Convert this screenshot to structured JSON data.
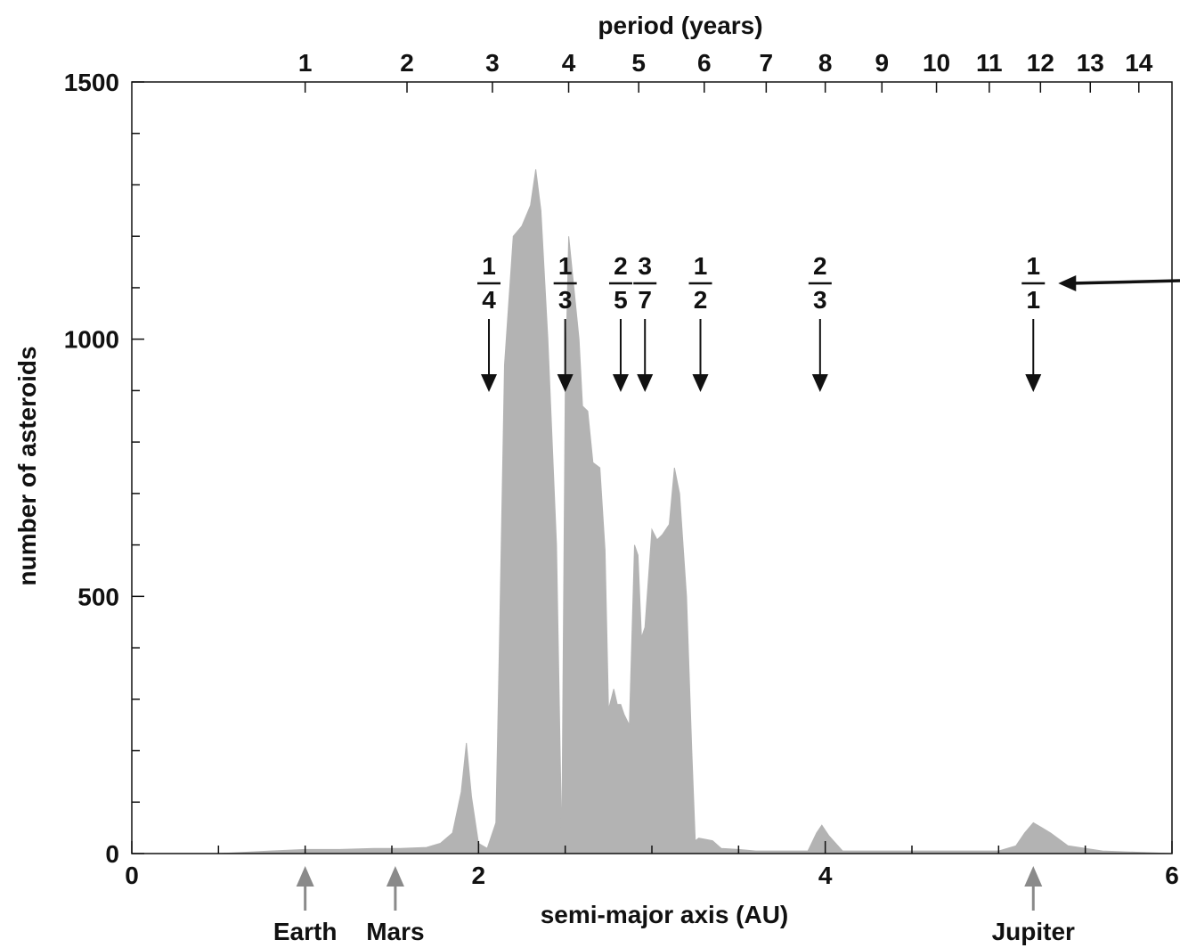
{
  "chart_data": {
    "type": "area",
    "xlabel": "semi-major axis (AU)",
    "ylabel": "number of asteroids",
    "x2label": "period (years)",
    "xlim": [
      0,
      6
    ],
    "ylim": [
      0,
      1500
    ],
    "x_ticks": [
      0,
      2,
      4,
      6
    ],
    "y_ticks": [
      0,
      500,
      1000,
      1500
    ],
    "period_ticks": [
      1,
      2,
      3,
      4,
      5,
      6,
      7,
      8,
      9,
      10,
      11,
      12,
      13,
      14
    ],
    "fill_color": "#b3b3b3",
    "distribution": {
      "x": [
        0.5,
        0.8,
        1.0,
        1.2,
        1.4,
        1.55,
        1.7,
        1.78,
        1.85,
        1.9,
        1.93,
        1.96,
        2.0,
        2.05,
        2.1,
        2.12,
        2.15,
        2.2,
        2.25,
        2.3,
        2.33,
        2.36,
        2.4,
        2.45,
        2.48,
        2.5,
        2.52,
        2.55,
        2.58,
        2.6,
        2.63,
        2.66,
        2.7,
        2.73,
        2.75,
        2.78,
        2.8,
        2.82,
        2.84,
        2.87,
        2.9,
        2.92,
        2.94,
        2.96,
        3.0,
        3.03,
        3.06,
        3.1,
        3.13,
        3.16,
        3.2,
        3.23,
        3.25,
        3.27,
        3.3,
        3.35,
        3.4,
        3.5,
        3.6,
        3.7,
        3.9,
        3.95,
        3.98,
        4.02,
        4.1,
        4.5,
        5.0,
        5.1,
        5.15,
        5.2,
        5.25,
        5.3,
        5.4,
        5.6,
        6.0
      ],
      "y": [
        0,
        5,
        8,
        8,
        10,
        10,
        12,
        20,
        40,
        120,
        215,
        110,
        20,
        10,
        60,
        400,
        950,
        1200,
        1220,
        1260,
        1330,
        1250,
        1000,
        600,
        20,
        900,
        1200,
        1100,
        1000,
        870,
        860,
        760,
        750,
        590,
        280,
        320,
        290,
        290,
        270,
        250,
        600,
        580,
        420,
        440,
        630,
        610,
        620,
        640,
        750,
        700,
        500,
        200,
        25,
        30,
        28,
        25,
        10,
        8,
        5,
        5,
        5,
        40,
        55,
        35,
        5,
        5,
        5,
        15,
        40,
        60,
        50,
        40,
        15,
        5,
        0
      ]
    },
    "resonances": [
      {
        "num": "1",
        "den": "4",
        "x": 2.06
      },
      {
        "num": "1",
        "den": "3",
        "x": 2.5
      },
      {
        "num": "2",
        "den": "5",
        "x": 2.82
      },
      {
        "num": "3",
        "den": "7",
        "x": 2.96
      },
      {
        "num": "1",
        "den": "2",
        "x": 3.28
      },
      {
        "num": "2",
        "den": "3",
        "x": 3.97
      },
      {
        "num": "1",
        "den": "1",
        "x": 5.2
      }
    ],
    "planets": [
      {
        "name": "Earth",
        "x": 1.0
      },
      {
        "name": "Mars",
        "x": 1.52
      },
      {
        "name": "Jupiter",
        "x": 5.2
      }
    ]
  }
}
